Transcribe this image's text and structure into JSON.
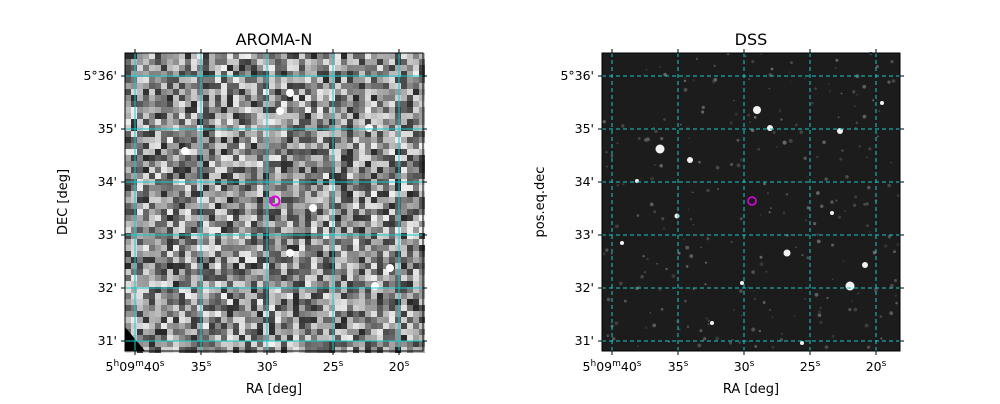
{
  "colors": {
    "grid": "#19c7c7",
    "marker": "#e000e0",
    "frame": "#000000"
  },
  "panels": [
    {
      "id": "left",
      "title": "AROMA-N",
      "xlabel": "RA [deg]",
      "ylabel": "DEC [deg]",
      "image_style": "noisy",
      "grid_style": "solid",
      "marker": "circle",
      "x_ticks": [
        {
          "main": "5",
          "h": "h",
          "mid": "09",
          "m": "m",
          "sec": "40",
          "s": "s"
        },
        {
          "main": "35",
          "s": "s"
        },
        {
          "main": "30",
          "s": "s"
        },
        {
          "main": "25",
          "s": "s"
        },
        {
          "main": "20",
          "s": "s"
        }
      ],
      "y_ticks": [
        "5°36'",
        "35'",
        "34'",
        "33'",
        "32'",
        "31'"
      ]
    },
    {
      "id": "right",
      "title": "DSS",
      "xlabel": "RA [deg]",
      "ylabel": "pos.eq.dec",
      "image_style": "dark",
      "grid_style": "dashed",
      "marker": "ring",
      "x_ticks": [
        {
          "main": "5",
          "h": "h",
          "mid": "09",
          "m": "m",
          "sec": "40",
          "s": "s"
        },
        {
          "main": "35",
          "s": "s"
        },
        {
          "main": "30",
          "s": "s"
        },
        {
          "main": "25",
          "s": "s"
        },
        {
          "main": "20",
          "s": "s"
        }
      ],
      "y_ticks": [
        "5°36'",
        "35'",
        "34'",
        "33'",
        "32'",
        "31'"
      ]
    }
  ]
}
